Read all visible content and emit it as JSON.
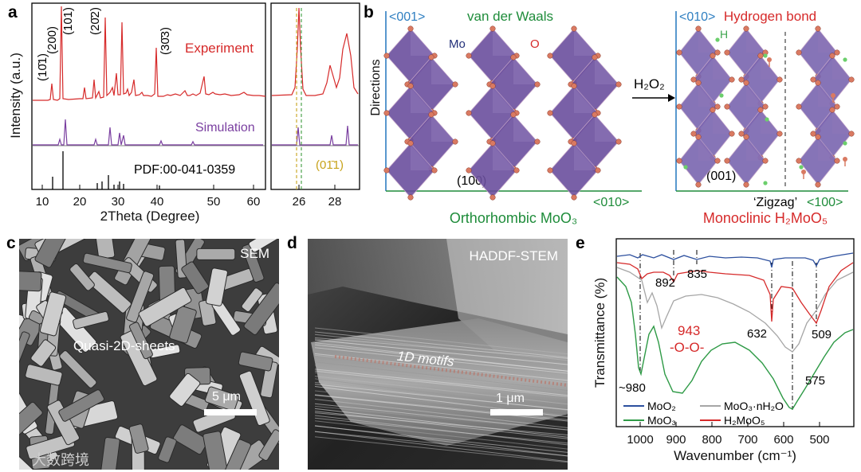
{
  "panel_labels": {
    "a": "a",
    "b": "b",
    "c": "c",
    "d": "d",
    "e": "e"
  },
  "panel_a": {
    "ylabel": "Intensity (a.u.)",
    "xlabel": "2Theta (Degree)",
    "xticks_main": [
      "10",
      "20",
      "30",
      "40",
      "50",
      "60"
    ],
    "xticks_inset": [
      "26",
      "28"
    ],
    "peak_labels": {
      "p1": "(10̄1)",
      "p2": "(200)",
      "p3": "(101)",
      "p4": "(20̄2)",
      "p5": "(30̄3)"
    },
    "experiment": "Experiment",
    "simulation": "Simulation",
    "pdf": "PDF:00-041-0359",
    "inset_label": "(01̄1)",
    "colors": {
      "experiment": "#d62a2a",
      "simulation": "#7a3fa0",
      "pdf": "#000000",
      "inset_dash": "#c7a21a"
    }
  },
  "panel_b": {
    "left_axis_top": "<001>",
    "left_axis_vertical": "Directions",
    "left_axis_bottom": "<010>",
    "vdw": "van der Waals",
    "mo": "Mo",
    "o": "O",
    "plane_left": "(100)",
    "left_title": "Orthorhombic MoO₃",
    "reagent": "H₂O₂",
    "right_axis_top": "<010>",
    "hbond": "Hydrogen bond",
    "h": "H",
    "plane_right": "(001)",
    "zigzag": "‘Zigzag’",
    "right_axis_bottom": "<100>",
    "right_title": "Monoclinic H₂MoO₅",
    "colors": {
      "blue": "#2f7fc1",
      "green": "#1e8c3a",
      "red": "#d62a2a",
      "octa": "#6b4f9e"
    }
  },
  "panel_c": {
    "tag": "SEM",
    "caption": "Quasi-2D-sheets",
    "scale": "5 μm"
  },
  "panel_d": {
    "tag": "HADDF-STEM",
    "caption": "1D motifs",
    "scale": "1 μm"
  },
  "panel_e": {
    "ylabel": "Transmittance (%)",
    "xlabel": "Wavenumber (cm⁻¹)",
    "xticks": [
      "1000",
      "900",
      "800",
      "700",
      "600",
      "500"
    ],
    "labels": {
      "l892": "892",
      "l835": "835",
      "l943": "943",
      "loo": "-O-O-",
      "l632": "632",
      "l509": "509",
      "l980": "~980",
      "l575": "575"
    },
    "legend": {
      "moo2": "MoO₂",
      "moo3nh2o": "MoO₃·nH₂O",
      "moo3": "MoO₃",
      "h2moo5": "H₂MoO₅"
    },
    "colors": {
      "moo2": "#2c4f9e",
      "moo3nh2o": "#a6a6a6",
      "moo3": "#2e9a46",
      "h2moo5": "#d62a2a"
    }
  },
  "watermark": "大数跨境"
}
